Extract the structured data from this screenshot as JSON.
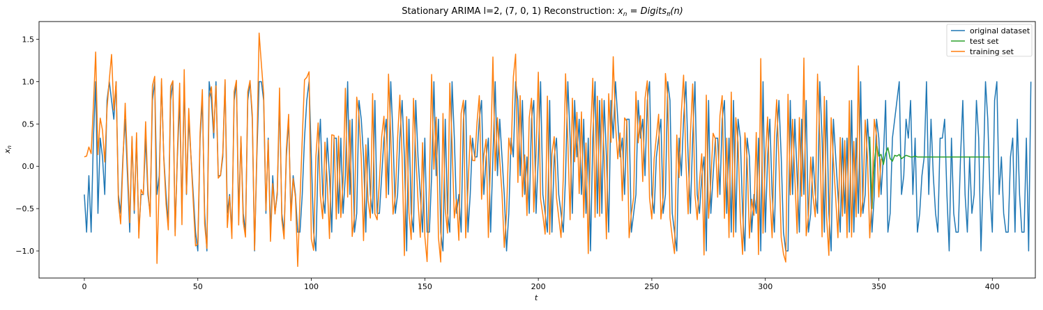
{
  "chart_data": {
    "type": "line",
    "title_plain": "Stationary ARIMA l=2, (7, 0, 1) Reconstruction: ",
    "title_math_x": "x",
    "title_math_sub_n": "n",
    "title_math_eq": " = Digits",
    "title_math_sub_pi": "π",
    "title_math_tail": "(n)",
    "xlabel": "t",
    "ylabel_base": "x",
    "ylabel_sub": "n",
    "xlim": [
      -19.95,
      418.95
    ],
    "ylim": [
      -1.32,
      1.71
    ],
    "xticks": [
      0,
      50,
      100,
      150,
      200,
      250,
      300,
      350,
      400
    ],
    "xtick_labels": [
      "0",
      "50",
      "100",
      "150",
      "200",
      "250",
      "300",
      "350",
      "400"
    ],
    "yticks": [
      -1.0,
      -0.5,
      0.0,
      0.5,
      1.0,
      1.5
    ],
    "ytick_labels": [
      "−1.0",
      "−0.5",
      "0.0",
      "0.5",
      "1.0",
      "1.5"
    ],
    "grid": false,
    "legend_position": "top-right",
    "series": [
      {
        "name": "original dataset",
        "color": "#1f77b4",
        "x_start": 0,
        "values": [
          -0.333,
          -0.778,
          -0.111,
          -0.778,
          0.333,
          1.0,
          -0.556,
          0.333,
          0.111,
          -0.333,
          0.778,
          1.0,
          0.778,
          0.556,
          1.0,
          -0.333,
          -0.556,
          0.111,
          0.556,
          -0.111,
          -0.778,
          0.333,
          -0.556,
          0.333,
          -0.778,
          -0.333,
          -0.333,
          0.333,
          -0.333,
          -0.556,
          0.778,
          1.0,
          -0.333,
          -0.111,
          1.0,
          0.111,
          -0.333,
          -0.667,
          0.778,
          1.0,
          -0.778,
          0.111,
          0.778,
          -0.556,
          1.0,
          -0.333,
          0.556,
          0.111,
          -0.333,
          -0.778,
          -1.0,
          0.333,
          0.778,
          -0.556,
          -1.0,
          1.0,
          0.778,
          0.333,
          1.0,
          -0.111,
          -0.111,
          0.111,
          1.0,
          -0.556,
          -0.333,
          -0.778,
          0.778,
          1.0,
          -0.556,
          0.333,
          -0.556,
          -0.778,
          0.778,
          1.0,
          0.556,
          -1.0,
          0.111,
          1.0,
          1.0,
          0.778,
          -0.556,
          0.333,
          -0.778,
          -0.111,
          -0.556,
          -0.333,
          0.778,
          -0.556,
          -0.778,
          0.111,
          0.556,
          -0.556,
          -0.111,
          -0.333,
          -0.778,
          -0.778,
          -0.333,
          0.333,
          0.778,
          1.0,
          0.111,
          -0.778,
          -1.0,
          0.111,
          0.556,
          -0.333,
          -0.556,
          0.333,
          -0.111,
          -0.778,
          0.333,
          0.333,
          -0.556,
          0.333,
          -0.556,
          -0.111,
          1.0,
          -0.333,
          0.556,
          -0.778,
          -0.556,
          0.778,
          0.556,
          0.111,
          -0.778,
          0.333,
          -0.333,
          -0.556,
          0.778,
          -0.556,
          -0.556,
          -0.111,
          0.333,
          0.556,
          -0.333,
          1.0,
          0.333,
          -0.556,
          -0.333,
          0.333,
          0.778,
          0.111,
          -1.0,
          0.556,
          -0.556,
          -0.778,
          0.778,
          0.111,
          -0.333,
          -0.778,
          0.333,
          -0.778,
          -0.778,
          -0.111,
          1.0,
          -0.111,
          0.556,
          -0.778,
          -1.0,
          0.556,
          -0.556,
          -0.778,
          1.0,
          0.333,
          -0.556,
          -0.333,
          -0.778,
          0.556,
          0.778,
          -0.778,
          -0.333,
          0.333,
          0.111,
          0.111,
          0.556,
          0.778,
          -0.333,
          0.111,
          0.333,
          -0.778,
          0.111,
          1.0,
          -0.111,
          0.556,
          0.111,
          -0.333,
          -1.0,
          -0.556,
          0.333,
          0.111,
          1.0,
          0.778,
          -0.111,
          0.778,
          -0.333,
          0.111,
          -0.556,
          0.556,
          0.778,
          -0.556,
          0.111,
          1.0,
          -0.333,
          -0.556,
          -0.778,
          0.778,
          -0.778,
          0.111,
          0.333,
          -0.333,
          -0.556,
          -0.778,
          -0.111,
          1.0,
          0.333,
          -0.556,
          0.778,
          0.111,
          0.556,
          -0.333,
          0.556,
          -0.556,
          0.333,
          -1.0,
          0.333,
          1.0,
          -0.556,
          0.778,
          -0.556,
          0.778,
          0.111,
          -0.778,
          0.778,
          0.333,
          1.0,
          0.556,
          0.111,
          0.333,
          -0.333,
          0.556,
          0.556,
          -0.778,
          -0.556,
          -0.333,
          0.778,
          0.333,
          0.556,
          -0.111,
          0.778,
          1.0,
          -0.333,
          -0.556,
          0.111,
          0.333,
          0.556,
          -0.556,
          -0.333,
          1.0,
          0.778,
          -0.556,
          -0.778,
          -1.0,
          0.333,
          -0.111,
          0.556,
          1.0,
          0.111,
          -0.556,
          0.333,
          1.0,
          -0.333,
          -0.556,
          -0.111,
          0.111,
          -1.0,
          0.778,
          -0.556,
          -0.111,
          0.333,
          0.333,
          -0.333,
          0.556,
          0.778,
          -0.556,
          0.333,
          -0.778,
          0.778,
          -0.778,
          0.556,
          0.333,
          -0.556,
          -1.0,
          0.333,
          0.111,
          -0.778,
          -0.333,
          -0.556,
          0.333,
          -1.0,
          1.0,
          -0.778,
          0.111,
          0.556,
          -0.333,
          -0.778,
          0.333,
          0.778,
          0.111,
          -0.778,
          -1.0,
          -1.0,
          0.778,
          -0.333,
          0.556,
          -0.111,
          -0.778,
          0.556,
          -0.333,
          0.778,
          -0.778,
          -0.556,
          0.111,
          -0.333,
          -0.556,
          1.0,
          0.333,
          -0.778,
          0.778,
          -0.556,
          -1.0,
          0.556,
          0.111,
          -0.333,
          -0.778,
          0.333,
          -0.556,
          0.333,
          -0.778,
          0.778,
          -0.778,
          0.333,
          -0.556,
          1.0,
          -0.556,
          -0.333,
          0.556,
          0.111,
          -0.778,
          -0.333,
          0.556,
          0.333,
          -0.333,
          0.111,
          0.778,
          -0.778,
          -0.556,
          0.333,
          0.556,
          0.778,
          1.0,
          -0.333,
          -0.111,
          0.556,
          0.333,
          0.778,
          -0.333,
          0.333,
          -0.778,
          -0.556,
          -0.111,
          0.111,
          1.0,
          -0.333,
          0.556,
          -0.111,
          -0.556,
          -0.778,
          0.333,
          0.333,
          0.556,
          -0.333,
          -1.0,
          0.333,
          -0.556,
          -0.778,
          -0.778,
          0.111,
          0.778,
          -0.333,
          -0.778,
          0.111,
          -0.556,
          -0.333,
          0.778,
          0.333,
          -1.0,
          -0.111,
          1.0,
          0.556,
          -0.333,
          -0.778,
          0.778,
          1.0,
          -0.333,
          0.111,
          -0.556,
          -0.778,
          -0.778,
          0.111,
          0.333,
          -0.778,
          0.556,
          -0.333,
          -0.778,
          -0.778,
          0.333,
          -1.0,
          1.0
        ]
      },
      {
        "name": "test set",
        "color": "#2ca02c",
        "x_start": 346,
        "values": [
          0.35,
          -0.5,
          0.05,
          0.27,
          0.12,
          0.14,
          0.02,
          0.15,
          0.22,
          0.09,
          0.06,
          0.13,
          0.12,
          0.14,
          0.09,
          0.11,
          0.13,
          0.12,
          0.11,
          0.11,
          0.12,
          0.11,
          0.11,
          0.11,
          0.11,
          0.11,
          0.11,
          0.11,
          0.11,
          0.11,
          0.11,
          0.11,
          0.11,
          0.11,
          0.11,
          0.11,
          0.11,
          0.11,
          0.11,
          0.11,
          0.11,
          0.11,
          0.11,
          0.11,
          0.11,
          0.11,
          0.11,
          0.11,
          0.11,
          0.11,
          0.11,
          0.11,
          0.11,
          0.11
        ]
      },
      {
        "name": "training set",
        "color": "#ff7f0e",
        "x_start": 0,
        "values": [
          0.111,
          0.121,
          0.228,
          0.15,
          0.721,
          1.35,
          0.138,
          0.569,
          0.427,
          0.051,
          0.682,
          1.022,
          1.321,
          0.665,
          1.001,
          -0.416,
          -0.681,
          0.043,
          0.745,
          0.022,
          -0.666,
          0.353,
          -0.518,
          0.396,
          -0.849,
          -0.274,
          -0.334,
          0.527,
          -0.266,
          -0.594,
          0.952,
          1.062,
          -1.148,
          -0.211,
          1.036,
          0.091,
          -0.445,
          -0.751,
          0.944,
          1.011,
          -0.821,
          0.174,
          0.982,
          -0.69,
          1.142,
          -0.325,
          0.684,
          0.101,
          -0.429,
          -0.941,
          -0.918,
          0.396,
          0.906,
          -0.68,
          -0.969,
          0.809,
          0.939,
          0.397,
          0.949,
          -0.14,
          -0.104,
          0.155,
          1.023,
          -0.724,
          -0.355,
          -0.854,
          0.883,
          1.016,
          -0.694,
          0.353,
          -0.658,
          -0.836,
          0.879,
          1.013,
          0.612,
          -0.989,
          0.184,
          1.573,
          1.205,
          0.858,
          -0.522,
          0.31,
          -0.887,
          -0.204,
          -0.564,
          -0.292,
          0.925,
          -0.629,
          -0.858,
          0.202,
          0.614,
          -0.642,
          -0.146,
          -0.367,
          -1.183,
          -0.399,
          0.323,
          1.021,
          1.051,
          1.117,
          -0.859,
          -0.992,
          0.109,
          0.512,
          -0.356,
          -0.619,
          0.285,
          -0.183,
          -0.854,
          0.372,
          0.365,
          -0.623,
          0.356,
          -0.605,
          -0.186,
          0.922,
          -0.364,
          0.545,
          -0.829,
          -0.584,
          0.817,
          0.598,
          0.091,
          -0.878,
          0.255,
          -0.401,
          -0.612,
          0.858,
          -0.561,
          -0.632,
          -0.165,
          0.353,
          0.591,
          -0.372,
          1.089,
          0.357,
          -0.566,
          -0.358,
          0.324,
          0.841,
          0.094,
          -1.055,
          0.586,
          -0.549,
          -0.865,
          0.803,
          0.158,
          -0.408,
          -0.839,
          0.279,
          -0.826,
          -1.126,
          -0.217,
          1.085,
          -0.035,
          0.58,
          -0.839,
          -1.131,
          0.624,
          -0.505,
          -0.789,
          0.982,
          0.262,
          -0.611,
          -0.392,
          -0.875,
          0.625,
          0.78,
          -0.846,
          -0.263,
          0.363,
          0.071,
          0.066,
          0.519,
          0.835,
          -0.39,
          0.128,
          0.319,
          -0.842,
          0.139,
          1.291,
          -0.052,
          0.574,
          0.078,
          -0.321,
          -0.959,
          -0.557,
          0.334,
          0.142,
          1.053,
          1.325,
          -0.191,
          0.834,
          -0.36,
          0.134,
          -0.582,
          0.573,
          0.804,
          -0.54,
          0.143,
          1.112,
          -0.388,
          -0.577,
          -0.802,
          0.829,
          -0.804,
          0.147,
          0.35,
          -0.372,
          -0.605,
          -0.841,
          -0.126,
          1.093,
          0.303,
          -0.631,
          0.804,
          0.054,
          0.637,
          -0.322,
          0.642,
          -0.605,
          0.275,
          -1.031,
          0.382,
          1.04,
          -0.604,
          0.828,
          -0.59,
          0.798,
          0.116,
          -0.858,
          0.857,
          0.283,
          1.294,
          0.492,
          0.088,
          0.394,
          -0.406,
          0.572,
          0.531,
          -0.844,
          -0.556,
          -0.368,
          0.882,
          0.277,
          0.598,
          -0.18,
          0.8,
          1.01,
          -0.376,
          -0.622,
          0.083,
          0.348,
          0.615,
          -0.623,
          -0.372,
          1.096,
          0.811,
          -0.607,
          -0.838,
          -1.031,
          0.369,
          -0.133,
          0.637,
          1.077,
          0.068,
          -0.562,
          0.374,
          0.973,
          -0.337,
          -0.631,
          -0.184,
          0.148,
          -1.048,
          0.841,
          -0.614,
          -0.166,
          0.39,
          0.323,
          -0.365,
          0.596,
          0.834,
          -0.615,
          0.333,
          -0.843,
          0.877,
          -0.835,
          0.575,
          0.279,
          -0.614,
          -1.041,
          0.396,
          0.081,
          -0.849,
          -0.389,
          -0.579,
          0.399,
          -1.043,
          1.273,
          -0.79,
          0.084,
          0.583,
          -0.338,
          -0.844,
          0.329,
          0.786,
          0.053,
          -0.841,
          -1.036,
          -1.131,
          0.851,
          -0.338,
          0.555,
          -0.133,
          -0.792,
          0.576,
          -0.354,
          1.279,
          -0.821,
          -0.578,
          0.109,
          -0.351,
          -0.597,
          1.089,
          0.352,
          -0.834,
          0.825,
          -0.606,
          -1.053,
          0.574,
          0.066,
          -0.373,
          -0.844,
          0.341,
          -0.589,
          0.305,
          -0.844,
          0.774,
          -0.836,
          0.294,
          -0.598,
          1.187,
          -0.595,
          -0.386,
          0.546,
          0.108,
          -0.846,
          -0.364,
          0.554,
          0.358,
          -0.363,
          0.089
        ]
      }
    ]
  }
}
